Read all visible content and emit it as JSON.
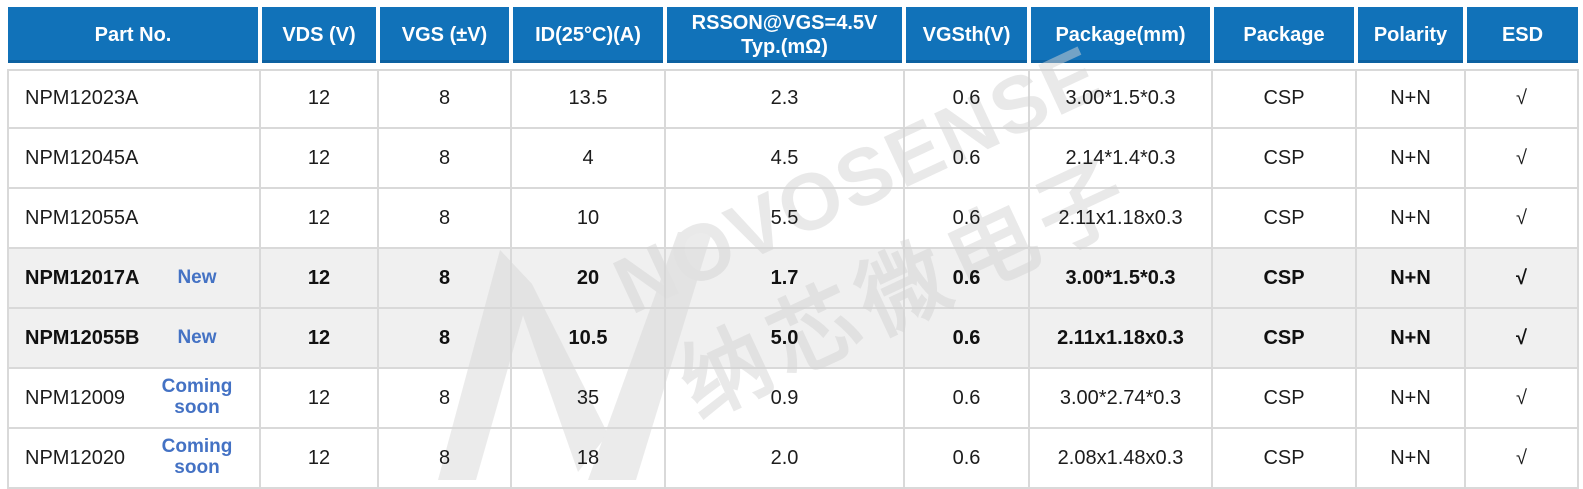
{
  "table": {
    "columns": [
      {
        "id": "part",
        "label": "Part No."
      },
      {
        "id": "vds",
        "label": "VDS (V)"
      },
      {
        "id": "vgs",
        "label": "VGS (±V)"
      },
      {
        "id": "id25",
        "label": "ID(25°C)(A)"
      },
      {
        "id": "rsson",
        "label": "RSSON@VGS=4.5V\nTyp.(mΩ)"
      },
      {
        "id": "vgsth",
        "label": "VGSth(V)"
      },
      {
        "id": "pkg_mm",
        "label": "Package(mm)"
      },
      {
        "id": "pkg",
        "label": "Package"
      },
      {
        "id": "polarity",
        "label": "Polarity"
      },
      {
        "id": "esd",
        "label": "ESD"
      }
    ],
    "rows": [
      {
        "part": "NPM12023A",
        "tag": "",
        "highlight": false,
        "vds": "12",
        "vgs": "8",
        "id25": "13.5",
        "rsson": "2.3",
        "vgsth": "0.6",
        "pkg_mm": "3.00*1.5*0.3",
        "pkg": "CSP",
        "polarity": "N+N",
        "esd": "√"
      },
      {
        "part": "NPM12045A",
        "tag": "",
        "highlight": false,
        "vds": "12",
        "vgs": "8",
        "id25": "4",
        "rsson": "4.5",
        "vgsth": "0.6",
        "pkg_mm": "2.14*1.4*0.3",
        "pkg": "CSP",
        "polarity": "N+N",
        "esd": "√"
      },
      {
        "part": "NPM12055A",
        "tag": "",
        "highlight": false,
        "vds": "12",
        "vgs": "8",
        "id25": "10",
        "rsson": "5.5",
        "vgsth": "0.6",
        "pkg_mm": "2.11x1.18x0.3",
        "pkg": "CSP",
        "polarity": "N+N",
        "esd": "√"
      },
      {
        "part": "NPM12017A",
        "tag": "New",
        "highlight": true,
        "vds": "12",
        "vgs": "8",
        "id25": "20",
        "rsson": "1.7",
        "vgsth": "0.6",
        "pkg_mm": "3.00*1.5*0.3",
        "pkg": "CSP",
        "polarity": "N+N",
        "esd": "√"
      },
      {
        "part": "NPM12055B",
        "tag": "New",
        "highlight": true,
        "vds": "12",
        "vgs": "8",
        "id25": "10.5",
        "rsson": "5.0",
        "vgsth": "0.6",
        "pkg_mm": "2.11x1.18x0.3",
        "pkg": "CSP",
        "polarity": "N+N",
        "esd": "√"
      },
      {
        "part": "NPM12009",
        "tag": "Coming soon",
        "highlight": false,
        "vds": "12",
        "vgs": "8",
        "id25": "35",
        "rsson": "0.9",
        "vgsth": "0.6",
        "pkg_mm": "3.00*2.74*0.3",
        "pkg": "CSP",
        "polarity": "N+N",
        "esd": "√"
      },
      {
        "part": "NPM12020",
        "tag": "Coming soon",
        "highlight": false,
        "vds": "12",
        "vgs": "8",
        "id25": "18",
        "rsson": "2.0",
        "vgsth": "0.6",
        "pkg_mm": "2.08x1.48x0.3",
        "pkg": "CSP",
        "polarity": "N+N",
        "esd": "√"
      }
    ]
  },
  "watermark": {
    "brand": "NOVOSENSE",
    "chinese": "纳芯微电子"
  },
  "colors": {
    "header_bg": "#1172b9",
    "header_text": "#ffffff",
    "highlight_row_bg": "#f0f0f0",
    "tag_blue": "#4472c4",
    "border": "#d9d9d9",
    "body_text": "#1c1c1c",
    "watermark_gray": "#d4d4d4"
  }
}
